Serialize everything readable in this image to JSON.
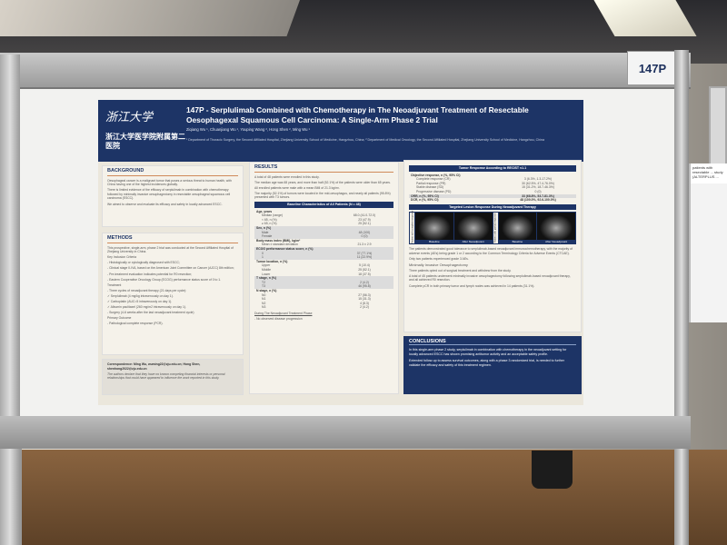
{
  "board_label": "147P",
  "header": {
    "logo_zju": "浙江大学",
    "logo_hospital": "浙江大学医学院附属第二医院",
    "title": "147P - Serplulimab Combined with Chemotherapy in The Neoadjuvant Treatment of Resectable Oesophagexal Squamous Cell Carcinoma: A Single-Arm Phase 2 Trial",
    "authors": "Ziqiang Wu ¹, Chuanjiang Wu ¹, Youping Wang ², Hong Shen ², Ming Wu ¹",
    "affiliations": "¹ Department of Thoracic Surgery, the Second Affiliated Hospital, Zhejiang University School of Medicine, Hangzhou, China; ² Department of Medical Oncology, the Second Affiliated Hospital, Zhejiang University School of Medicine, Hangzhou, China"
  },
  "background": {
    "heading": "BACKGROUND",
    "paragraphs": [
      "Oesophageal cancer is a malignant tumor that poses a serious threat to human health, with China having one of the highest incidences globally.",
      "There is limited evidence of the efficacy of serplulimab in combination with chemotherapy followed by minimally invasive oesophagectomy in resectable oesophageal squamous cell carcinoma (ESCC).",
      "We aimed to observe and evaluate its efficacy and safety in locally advanced ESCC."
    ]
  },
  "methods": {
    "heading": "METHODS",
    "lines": [
      "This prospective, single-arm, phase 2 trial was conducted at the Second Affiliated Hospital of Zhejiang University in China.",
      "Key Inclusion Criteria",
      "- Histologically or cytologically diagnosed with ESCC;",
      "- Clinical stage II-IVA, based on the American Joint Committee on Cancer (AJCC) 8th edition;",
      "- Pre-treatment evaluation indicates potential for R0 resection;",
      "- Eastern Cooperative Oncology Group (ECOG) performance status score of 0 to 1.",
      "Treatment",
      "- Three cycles of neoadjuvant therapy (21 days per cycle):",
      "  ✓ Serplulimab (4 mg/kg intravenously on day 1).",
      "  ✓ Carboplatin (AUC=5 intravenously on day 1).",
      "  ✓ Albumin paclitaxel (260 mg/m2 intravenously on day 1).",
      "- Surgery (4-6 weeks after the last neoadjuvant treatment cycle)",
      "Primary Outcome",
      "- Pathological complete response (PCR)."
    ]
  },
  "correspondence": {
    "text": "Correspondence: Ming Wu, wuming22@zju.edu.cn; Hong Shen, shenhong2022@zju.edu.cn",
    "disclosure": "The authors declare that they have no known competing financial interests or personal relationships that could have appeared to influence the work reported in this study."
  },
  "results": {
    "heading": "RESULTS",
    "paragraphs": [
      "A total of 48 patients were enrolled in this study.",
      "The median age was 68 years, and more than half (52.1%) of the patients were older than 65 years.",
      "All enrolled patients were male with a mean BMI of 21.3 kg/m².",
      "The majority (52.1%) of tumors were located in the mid-oesophagus, and nearly all patients (95.8%) presented with T3 tumors."
    ],
    "table_title": "Baseline Characteristics of All Patients (N = 48)",
    "table": [
      {
        "label": "Age, years",
        "value": "",
        "bold": true
      },
      {
        "label": "Median (range)",
        "value": "68.0 (41.0-72.0)"
      },
      {
        "label": "< 65, n (%)",
        "value": "23 (47.9)"
      },
      {
        "label": "≥ 65, n (%)",
        "value": "25 (52.1)"
      },
      {
        "label": "Sex, n (%)",
        "value": "",
        "bold": true,
        "shade": true
      },
      {
        "label": "Male",
        "value": "48 (100)",
        "shade": true
      },
      {
        "label": "Female",
        "value": "0 (0)",
        "shade": true
      },
      {
        "label": "Body mass index (BMI), kg/m²",
        "value": "",
        "bold": true
      },
      {
        "label": "Mean ± standard deviation",
        "value": "21.3 ± 2.9"
      },
      {
        "label": "ECOG performance status score, n (%)",
        "value": "",
        "bold": true,
        "shade": true
      },
      {
        "label": "0",
        "value": "37 (77.1%)",
        "shade": true
      },
      {
        "label": "1",
        "value": "11 (22.9%)",
        "shade": true
      },
      {
        "label": "Tumor location, n (%)",
        "value": "",
        "bold": true
      },
      {
        "label": "Upper",
        "value": "5 (10.4)"
      },
      {
        "label": "Middle",
        "value": "25 (52.1)"
      },
      {
        "label": "Lower",
        "value": "18 (37.5)"
      },
      {
        "label": "T stage, n (%)",
        "value": "",
        "bold": true,
        "shade": true
      },
      {
        "label": "T2",
        "value": "2 (4.2)",
        "shade": true
      },
      {
        "label": "T3",
        "value": "46 (95.8)",
        "shade": true
      },
      {
        "label": "N stage, n (%)",
        "value": "",
        "bold": true
      },
      {
        "label": "N0",
        "value": "27 (56.3)"
      },
      {
        "label": "N1",
        "value": "15 (31.3)"
      },
      {
        "label": "N2",
        "value": "4 (8.3)"
      },
      {
        "label": "N3",
        "value": "2 (4.2)"
      }
    ],
    "phase_heading": "During The Neoadjuvant Treatment Phase",
    "phase_item": "- No observed disease progression"
  },
  "response": {
    "title": "Tumor Response According to RECIST v1.1",
    "rows": [
      {
        "label": "Objective response, n (%, 95% CI)",
        "value": "",
        "bold": true
      },
      {
        "label": "Complete response (CR)",
        "value": "3 (6.3%, 1.3-17.2%)"
      },
      {
        "label": "Partial response (PR)",
        "value": "30 (62.5%, 47.4-76.0%)"
      },
      {
        "label": "Stable disease (SD)",
        "value": "15 (31.2%, 18.7-46.3%)"
      },
      {
        "label": "Progressive disease (PD)",
        "value": "0 (0)"
      },
      {
        "label": "ORR, n (%, 95% CI)",
        "value": "33 (68.8%, 53.7-81.3%)",
        "bold": true,
        "shade": true
      },
      {
        "label": "DCR, n (%, 95% CI)",
        "value": "48 (100.0%, 92.6-100.0%)",
        "bold": true
      }
    ],
    "images_title": "Targeted Lesion Response During Neoadjuvant Therapy",
    "images": [
      "Baseline",
      "After Neoadjuvant",
      "Baseline",
      "After Neoadjuvant"
    ],
    "side_labels": [
      "Patient with complete response",
      "Patient with partial response"
    ],
    "safety": [
      "The patients demonstrated good tolerance to serplulimab-based neoadjuvant immunochemotherapy, with the majority of adverse events (AEs) being grade 1 or 2 according to the Common Terminology Criteria for Adverse Events (CTCAE).",
      "Only two patients experienced grade 3 AEs."
    ],
    "mio_heading": "Minimally Invasive Oesophagectomy",
    "mio": [
      "Three patients opted out of surgical treatment and withdrew from the study.",
      "A total of 45 patients underwent minimally invasive oesophagectomy following serplulimab-based neoadjuvant therapy, and all achieved R0 resection.",
      "Complete pCR in both primary tumor and lymph nodes was achieved in 14 patients (31.1%)."
    ]
  },
  "conclusions": {
    "heading": "CONCLUSIONS",
    "paragraphs": [
      "In this single-arm phase 2 study, serplulimab in combination with chemotherapy in the neoadjuvant setting for locally advanced ESCC has shown promising antitumor activity and an acceptable safety profile.",
      "Extended follow-up to assess survival outcomes, along with a phase 3 randomized trial, is needed to further validate the efficacy and safety of this treatment regimen."
    ]
  },
  "side_poster": {
    "fragment": "patients with resectable ... study (ALTERPLUS ..."
  },
  "colors": {
    "poster_navy": "#1d3466",
    "poster_bg": "#ebe7dc",
    "accent_line": "#d08a5a",
    "floor": "#7a5637"
  }
}
